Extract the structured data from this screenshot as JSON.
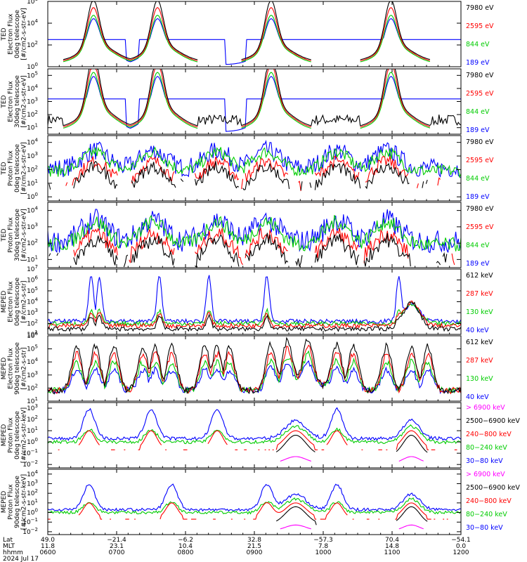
{
  "chart_data": [
    {
      "type": "line",
      "ylabel": [
        "TED",
        "Electron Flux",
        "0deg telescope",
        "[#/cm2-s-str-eV]"
      ],
      "ytick_exponents": [
        0,
        2,
        4,
        6
      ],
      "ylim_exp": [
        0,
        6
      ],
      "legend": [
        {
          "label": "7980 eV",
          "color": "#000000"
        },
        {
          "label": "2595 eV",
          "color": "#ff0000"
        },
        {
          "label": "844 eV",
          "color": "#00cc00"
        },
        {
          "label": "189 eV",
          "color": "#0000ff"
        }
      ]
    },
    {
      "type": "line",
      "ylabel": [
        "TED",
        "Electron Flux",
        "30deg telescope",
        "[#/cm2-s-str-eV]"
      ],
      "ytick_exponents": [
        1,
        2,
        3,
        4,
        5
      ],
      "ylim_exp": [
        0.5,
        5.5
      ],
      "legend": [
        {
          "label": "7980 eV",
          "color": "#000000"
        },
        {
          "label": "2595 eV",
          "color": "#ff0000"
        },
        {
          "label": "844 eV",
          "color": "#00cc00"
        },
        {
          "label": "189 eV",
          "color": "#0000ff"
        }
      ]
    },
    {
      "type": "line",
      "ylabel": [
        "TED",
        "Proton Flux",
        "0deg telescope",
        "[#/cm2-s-str-eV]"
      ],
      "ytick_exponents": [
        0,
        1,
        2,
        3,
        4
      ],
      "ylim_exp": [
        -0.3,
        4.5
      ],
      "legend": [
        {
          "label": "7980 eV",
          "color": "#000000"
        },
        {
          "label": "2595 eV",
          "color": "#ff0000"
        },
        {
          "label": "844 eV",
          "color": "#00cc00"
        },
        {
          "label": "189 eV",
          "color": "#0000ff"
        }
      ]
    },
    {
      "type": "line",
      "ylabel": [
        "TED",
        "Proton Flux",
        "30deg telescope",
        "[#/cm2-s-str-eV]"
      ],
      "ytick_exponents": [
        1,
        2,
        3,
        4
      ],
      "ylim_exp": [
        0.5,
        4.5
      ],
      "legend": [
        {
          "label": "7980 eV",
          "color": "#000000"
        },
        {
          "label": "2595 eV",
          "color": "#ff0000"
        },
        {
          "label": "844 eV",
          "color": "#00cc00"
        },
        {
          "label": "189 eV",
          "color": "#0000ff"
        }
      ]
    },
    {
      "type": "line",
      "ylabel": [
        "MEPED",
        "Electron Flux",
        "0deg telescope",
        "[#/cm2-s-str]"
      ],
      "ytick_exponents": [
        1,
        2,
        3,
        4,
        5,
        6,
        7
      ],
      "ylim_exp": [
        1,
        7
      ],
      "legend": [
        {
          "label": "612 keV",
          "color": "#000000"
        },
        {
          "label": "287 keV",
          "color": "#ff0000"
        },
        {
          "label": "130 keV",
          "color": "#00cc00"
        },
        {
          "label": "40 keV",
          "color": "#0000ff"
        }
      ]
    },
    {
      "type": "line",
      "ylabel": [
        "MEPED",
        "Electron Flux",
        "90deg telescope",
        "[#/cm2-s-str]"
      ],
      "ytick_exponents": [
        1,
        2,
        3,
        4,
        5,
        6
      ],
      "ylim_exp": [
        1,
        6
      ],
      "legend": [
        {
          "label": "612 keV",
          "color": "#000000"
        },
        {
          "label": "287 keV",
          "color": "#ff0000"
        },
        {
          "label": "130 keV",
          "color": "#00cc00"
        },
        {
          "label": "40 keV",
          "color": "#0000ff"
        }
      ]
    },
    {
      "type": "line",
      "ylabel": [
        "MEPED",
        "Proton Flux",
        "0deg telescope",
        "[#/cm2-s-str-keV]"
      ],
      "ytick_exponents": [
        -2,
        -1,
        0,
        1,
        2,
        3
      ],
      "ylim_exp": [
        -2.3,
        3.5
      ],
      "legend": [
        {
          "label": "> 6900 keV",
          "color": "#ff00ff"
        },
        {
          "label": "2500−6900 keV",
          "color": "#000000"
        },
        {
          "label": "240−800 keV",
          "color": "#ff0000"
        },
        {
          "label": "80−240 keV",
          "color": "#00cc00"
        },
        {
          "label": "30−80 keV",
          "color": "#0000ff"
        }
      ]
    },
    {
      "type": "line",
      "ylabel": [
        "MEPED",
        "Proton Flux",
        "90deg telescope",
        "[#/cm2-s-str-keV]"
      ],
      "ytick_exponents": [
        -2,
        -1,
        0,
        1,
        2,
        3,
        4
      ],
      "ylim_exp": [
        -2.3,
        4.5
      ],
      "legend": [
        {
          "label": "> 6900 keV",
          "color": "#ff00ff"
        },
        {
          "label": "2500−6900 keV",
          "color": "#000000"
        },
        {
          "label": "240−800 keV",
          "color": "#ff0000"
        },
        {
          "label": "80−240 keV",
          "color": "#00cc00"
        },
        {
          "label": "30−80 keV",
          "color": "#0000ff"
        }
      ]
    }
  ],
  "xaxis": {
    "row_labels": [
      "Lat",
      "MLT",
      "hhmm",
      "2024 Jul 17"
    ],
    "ticks": [
      {
        "lat": "49.0",
        "mlt": "11.8",
        "hhmm": "0600"
      },
      {
        "lat": "−21.4",
        "mlt": "23.1",
        "hhmm": "0700"
      },
      {
        "lat": "−6.2",
        "mlt": "10.4",
        "hhmm": "0800"
      },
      {
        "lat": "32.8",
        "mlt": "21.5",
        "hhmm": "0900"
      },
      {
        "lat": "−57.3",
        "mlt": "7.8",
        "hhmm": "1000"
      },
      {
        "lat": "70.4",
        "mlt": "14.8",
        "hhmm": "1100"
      },
      {
        "lat": "−54.1",
        "mlt": "0.0",
        "hhmm": "1200"
      }
    ]
  }
}
